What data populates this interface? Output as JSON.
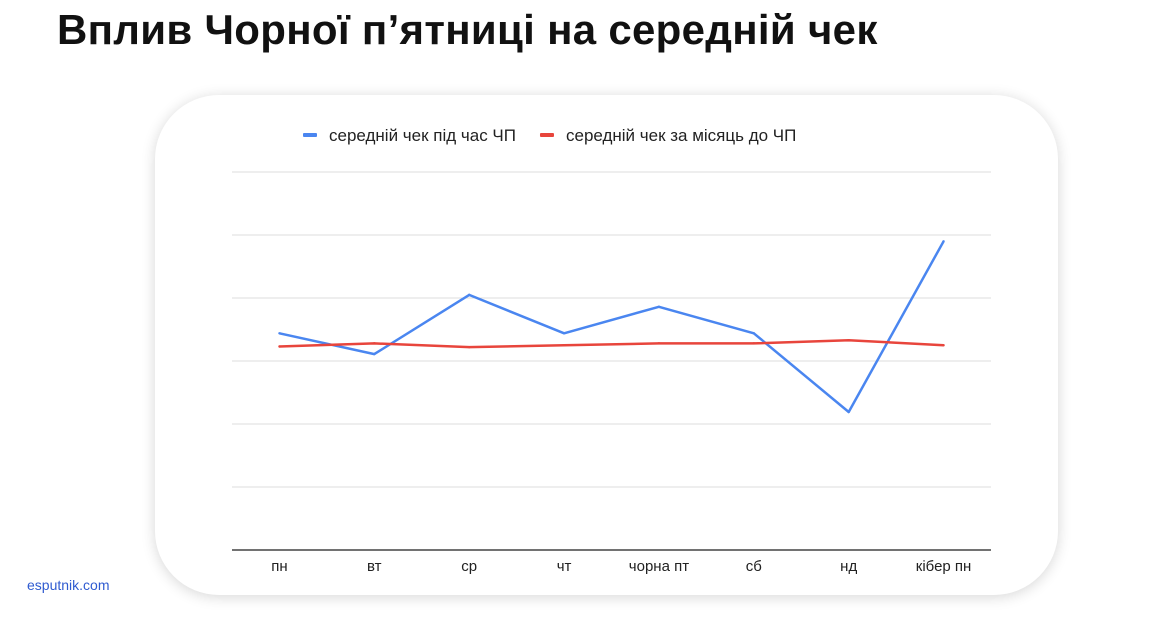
{
  "title": "Вплив Чорної пʼятниці на середній чек",
  "brand": "esputnik.com",
  "colors": {
    "series_1": "#4a86f0",
    "series_2": "#e8453c",
    "grid": "#dddddd",
    "axis": "#444444"
  },
  "chart_data": {
    "type": "line",
    "title": "",
    "xlabel": "",
    "ylabel": "",
    "categories": [
      "пн",
      "вт",
      "ср",
      "чт",
      "чорна пт",
      "сб",
      "нд",
      "кібер пн"
    ],
    "series": [
      {
        "name": "середній чек під час ЧП",
        "values": [
          3.44,
          3.11,
          4.05,
          3.44,
          3.86,
          3.44,
          2.19,
          4.9
        ]
      },
      {
        "name": "середній чек за місяць до ЧП",
        "values": [
          3.23,
          3.28,
          3.22,
          3.25,
          3.28,
          3.28,
          3.33,
          3.25
        ]
      }
    ],
    "ylim": [
      0,
      6
    ],
    "yticks": [
      0,
      1,
      2,
      3,
      4,
      5,
      6
    ],
    "y_tick_labels_shown": false,
    "grid": true,
    "legend": "top"
  }
}
